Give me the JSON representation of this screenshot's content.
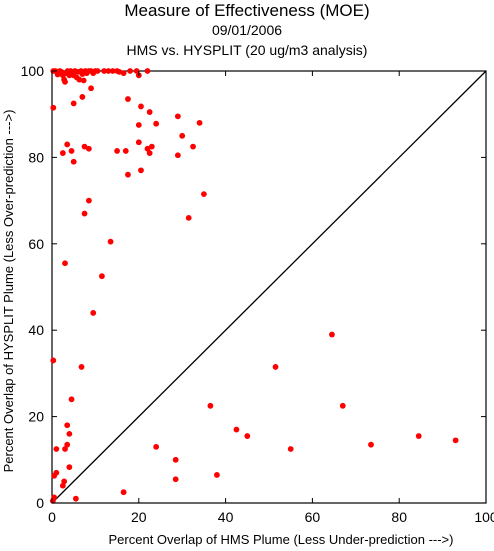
{
  "chart_data": {
    "type": "scatter",
    "title": "Measure of Effectiveness (MOE)",
    "date": "09/01/2006",
    "subtitle": "HMS vs. HYSPLIT  (20 ug/m3 analysis)",
    "xlabel": "Percent Overlap of HMS Plume (Less Under-prediction --->)",
    "ylabel": "Percent Overlap of HYSPLIT Plume (Less Over-prediction --->)",
    "xlim": [
      0,
      100
    ],
    "ylim": [
      0,
      100
    ],
    "xticks": [
      0,
      20,
      40,
      60,
      80,
      100
    ],
    "yticks": [
      0,
      20,
      40,
      60,
      80,
      100
    ],
    "grid": false,
    "reference_line": "y = x",
    "point_color": "#ff0000",
    "line_color": "#000000",
    "points": [
      [
        0.3,
        100
      ],
      [
        0.8,
        100
      ],
      [
        1.3,
        99.2
      ],
      [
        1.8,
        100
      ],
      [
        2.2,
        99.8
      ],
      [
        2.5,
        99
      ],
      [
        2.8,
        98
      ],
      [
        3,
        97.5
      ],
      [
        3.3,
        99.5
      ],
      [
        3.6,
        100
      ],
      [
        4,
        99
      ],
      [
        4.3,
        100
      ],
      [
        4.7,
        99.6
      ],
      [
        5,
        99
      ],
      [
        5.3,
        100
      ],
      [
        5.7,
        98.5
      ],
      [
        6,
        99.8
      ],
      [
        6.3,
        98
      ],
      [
        6.7,
        100
      ],
      [
        7,
        99.3
      ],
      [
        7.3,
        97.8
      ],
      [
        7.7,
        100
      ],
      [
        8,
        99.5
      ],
      [
        8.5,
        100
      ],
      [
        9,
        100
      ],
      [
        9.5,
        99.5
      ],
      [
        10,
        100
      ],
      [
        10.5,
        100
      ],
      [
        12,
        100
      ],
      [
        13,
        100
      ],
      [
        14,
        100
      ],
      [
        15,
        100
      ],
      [
        15.5,
        99.8
      ],
      [
        16.5,
        99.5
      ],
      [
        18,
        100
      ],
      [
        19.5,
        100
      ],
      [
        20,
        99
      ],
      [
        22,
        100
      ],
      [
        0.3,
        91.5
      ],
      [
        5,
        92.5
      ],
      [
        7,
        94
      ],
      [
        9,
        96
      ],
      [
        17.5,
        93.5
      ],
      [
        20.5,
        91.8
      ],
      [
        22.5,
        90.5
      ],
      [
        29,
        89.5
      ],
      [
        20,
        87.5
      ],
      [
        24,
        87.8
      ],
      [
        34,
        88
      ],
      [
        30,
        85
      ],
      [
        2.5,
        81
      ],
      [
        3.5,
        83
      ],
      [
        4.5,
        81.5
      ],
      [
        5,
        79
      ],
      [
        7.5,
        82.5
      ],
      [
        8.5,
        82
      ],
      [
        15,
        81.5
      ],
      [
        17,
        81.5
      ],
      [
        20,
        83.5
      ],
      [
        22,
        82
      ],
      [
        22.5,
        81
      ],
      [
        23,
        82.5
      ],
      [
        29,
        80.5
      ],
      [
        32.5,
        82.5
      ],
      [
        17.5,
        76
      ],
      [
        20.5,
        77
      ],
      [
        35,
        71.5
      ],
      [
        31.5,
        66
      ],
      [
        8.5,
        70
      ],
      [
        7.5,
        67
      ],
      [
        13.5,
        60.5
      ],
      [
        3,
        55.5
      ],
      [
        11.5,
        52.5
      ],
      [
        9.5,
        44
      ],
      [
        0.3,
        33
      ],
      [
        6.8,
        31.5
      ],
      [
        4.5,
        24
      ],
      [
        3.5,
        18
      ],
      [
        4,
        16
      ],
      [
        3.5,
        13.5
      ],
      [
        3,
        12.5
      ],
      [
        1,
        12.5
      ],
      [
        1,
        7
      ],
      [
        0.5,
        6.3
      ],
      [
        4,
        8.3
      ],
      [
        2.8,
        5
      ],
      [
        2.5,
        4
      ],
      [
        0.5,
        1.3
      ],
      [
        0.2,
        0.5
      ],
      [
        5.5,
        1
      ],
      [
        16.5,
        2.5
      ],
      [
        24,
        13
      ],
      [
        28.5,
        10
      ],
      [
        28.5,
        5.5
      ],
      [
        36.5,
        22.5
      ],
      [
        38,
        6.5
      ],
      [
        42.5,
        17
      ],
      [
        45,
        15.5
      ],
      [
        51.5,
        31.5
      ],
      [
        55,
        12.5
      ],
      [
        64.5,
        39
      ],
      [
        67,
        22.5
      ],
      [
        73.5,
        13.5
      ],
      [
        84.5,
        15.5
      ],
      [
        93,
        14.5
      ]
    ]
  }
}
